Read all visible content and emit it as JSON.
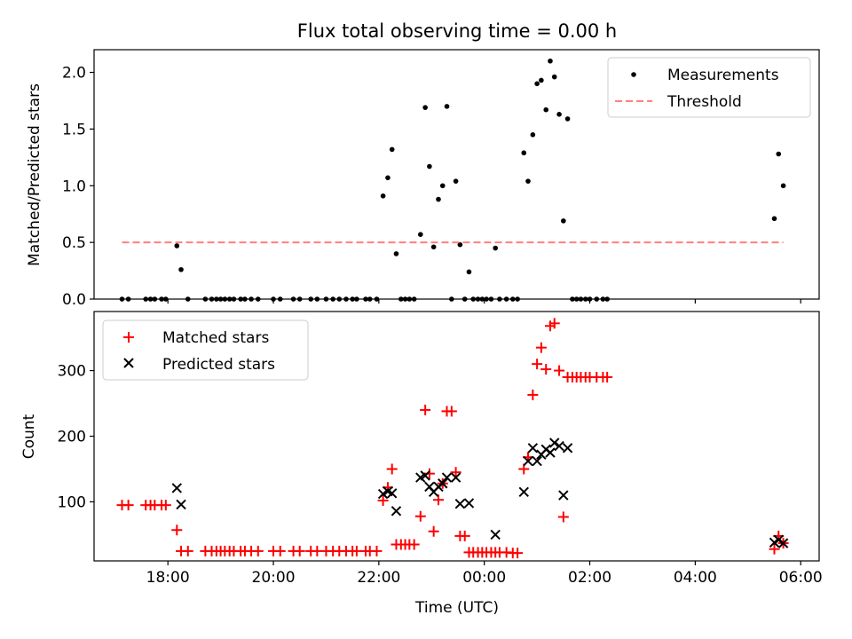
{
  "chart_data": [
    {
      "type": "scatter",
      "title": "Flux total observing time = 0.00 h",
      "xlabel": "",
      "ylabel": "Matched/Predicted stars",
      "xlim": [
        16.6,
        30.35
      ],
      "ylim": [
        0,
        2.2
      ],
      "x_unit": "hours since 00:00 UTC of first day (values above 24 are after midnight)",
      "yticks": [
        0.0,
        0.5,
        1.0,
        1.5,
        2.0
      ],
      "ytick_labels": [
        "0.0",
        "0.5",
        "1.0",
        "1.5",
        "2.0"
      ],
      "legend": "top-right",
      "series": [
        {
          "name": "Measurements",
          "marker": "dot",
          "color": "#000000",
          "points": [
            [
              17.13,
              0
            ],
            [
              17.25,
              0
            ],
            [
              17.58,
              0
            ],
            [
              17.67,
              0
            ],
            [
              17.75,
              0
            ],
            [
              17.88,
              0
            ],
            [
              17.96,
              0
            ],
            [
              18.17,
              0.47
            ],
            [
              18.25,
              0.26
            ],
            [
              18.38,
              0
            ],
            [
              18.71,
              0
            ],
            [
              18.83,
              0
            ],
            [
              18.92,
              0
            ],
            [
              19.0,
              0
            ],
            [
              19.08,
              0
            ],
            [
              19.17,
              0
            ],
            [
              19.25,
              0
            ],
            [
              19.38,
              0
            ],
            [
              19.46,
              0
            ],
            [
              19.58,
              0
            ],
            [
              19.71,
              0
            ],
            [
              20.0,
              0
            ],
            [
              20.13,
              0
            ],
            [
              20.38,
              0
            ],
            [
              20.5,
              0
            ],
            [
              20.71,
              0
            ],
            [
              20.83,
              0
            ],
            [
              21.0,
              0
            ],
            [
              21.13,
              0
            ],
            [
              21.25,
              0
            ],
            [
              21.38,
              0
            ],
            [
              21.5,
              0
            ],
            [
              21.58,
              0
            ],
            [
              21.75,
              0
            ],
            [
              21.83,
              0
            ],
            [
              21.96,
              0
            ],
            [
              22.08,
              0.91
            ],
            [
              22.17,
              1.07
            ],
            [
              22.25,
              1.32
            ],
            [
              22.33,
              0.4
            ],
            [
              22.42,
              0
            ],
            [
              22.5,
              0
            ],
            [
              22.58,
              0
            ],
            [
              22.67,
              0
            ],
            [
              22.79,
              0.57
            ],
            [
              22.88,
              1.69
            ],
            [
              22.96,
              1.17
            ],
            [
              23.04,
              0.46
            ],
            [
              23.13,
              0.88
            ],
            [
              23.21,
              1.0
            ],
            [
              23.29,
              1.7
            ],
            [
              23.38,
              0
            ],
            [
              23.46,
              1.04
            ],
            [
              23.54,
              0.48
            ],
            [
              23.63,
              0
            ],
            [
              23.71,
              0.24
            ],
            [
              23.79,
              0
            ],
            [
              23.88,
              0
            ],
            [
              23.96,
              0
            ],
            [
              24.04,
              0
            ],
            [
              24.13,
              0
            ],
            [
              24.21,
              0.45
            ],
            [
              24.29,
              0
            ],
            [
              24.42,
              0
            ],
            [
              24.54,
              0
            ],
            [
              24.63,
              0
            ],
            [
              24.75,
              1.29
            ],
            [
              24.83,
              1.04
            ],
            [
              24.92,
              1.45
            ],
            [
              25.0,
              1.9
            ],
            [
              25.08,
              1.93
            ],
            [
              25.17,
              1.67
            ],
            [
              25.25,
              2.1
            ],
            [
              25.33,
              1.96
            ],
            [
              25.42,
              1.63
            ],
            [
              25.5,
              0.69
            ],
            [
              25.58,
              1.59
            ],
            [
              25.67,
              0
            ],
            [
              25.75,
              0
            ],
            [
              25.83,
              0
            ],
            [
              25.92,
              0
            ],
            [
              26.0,
              0
            ],
            [
              26.13,
              0
            ],
            [
              26.25,
              0
            ],
            [
              26.33,
              0
            ],
            [
              29.5,
              0.71
            ],
            [
              29.58,
              1.28
            ],
            [
              29.67,
              1.0
            ]
          ]
        },
        {
          "name": "Threshold",
          "marker": "dashed-line",
          "color": "#ff7f7f",
          "points": [
            [
              17.13,
              0.5
            ],
            [
              29.67,
              0.5
            ]
          ]
        }
      ]
    },
    {
      "type": "scatter",
      "title": "",
      "xlabel": "Time (UTC)",
      "ylabel": "Count",
      "xlim": [
        16.6,
        30.35
      ],
      "ylim": [
        10,
        390
      ],
      "x_unit": "hours since 00:00 UTC of first day (values above 24 are after midnight)",
      "xticks": [
        18,
        20,
        22,
        24,
        26,
        28,
        30
      ],
      "xtick_labels": [
        "18:00",
        "20:00",
        "22:00",
        "00:00",
        "02:00",
        "04:00",
        "06:00"
      ],
      "yticks": [
        100,
        200,
        300
      ],
      "ytick_labels": [
        "100",
        "200",
        "300"
      ],
      "legend": "top-left",
      "series": [
        {
          "name": "Matched stars",
          "marker": "plus",
          "color": "#ff0000",
          "points": [
            [
              17.13,
              95
            ],
            [
              17.25,
              95
            ],
            [
              17.58,
              95
            ],
            [
              17.67,
              95
            ],
            [
              17.75,
              95
            ],
            [
              17.88,
              95
            ],
            [
              17.96,
              95
            ],
            [
              18.17,
              57
            ],
            [
              18.25,
              25
            ],
            [
              18.38,
              25
            ],
            [
              18.71,
              25
            ],
            [
              18.83,
              25
            ],
            [
              18.92,
              25
            ],
            [
              19.0,
              25
            ],
            [
              19.08,
              25
            ],
            [
              19.17,
              25
            ],
            [
              19.25,
              25
            ],
            [
              19.38,
              25
            ],
            [
              19.46,
              25
            ],
            [
              19.58,
              25
            ],
            [
              19.71,
              25
            ],
            [
              20.0,
              25
            ],
            [
              20.13,
              25
            ],
            [
              20.38,
              25
            ],
            [
              20.5,
              25
            ],
            [
              20.71,
              25
            ],
            [
              20.83,
              25
            ],
            [
              21.0,
              25
            ],
            [
              21.13,
              25
            ],
            [
              21.25,
              25
            ],
            [
              21.38,
              25
            ],
            [
              21.5,
              25
            ],
            [
              21.58,
              25
            ],
            [
              21.75,
              25
            ],
            [
              21.83,
              25
            ],
            [
              21.96,
              25
            ],
            [
              22.08,
              102
            ],
            [
              22.17,
              122
            ],
            [
              22.25,
              150
            ],
            [
              22.33,
              35
            ],
            [
              22.42,
              35
            ],
            [
              22.5,
              35
            ],
            [
              22.58,
              35
            ],
            [
              22.67,
              35
            ],
            [
              22.79,
              78
            ],
            [
              22.88,
              240
            ],
            [
              22.96,
              143
            ],
            [
              23.04,
              55
            ],
            [
              23.13,
              103
            ],
            [
              23.21,
              128
            ],
            [
              23.29,
              238
            ],
            [
              23.38,
              238
            ],
            [
              23.46,
              145
            ],
            [
              23.54,
              48
            ],
            [
              23.63,
              48
            ],
            [
              23.71,
              23
            ],
            [
              23.79,
              23
            ],
            [
              23.88,
              23
            ],
            [
              23.96,
              23
            ],
            [
              24.04,
              23
            ],
            [
              24.13,
              23
            ],
            [
              24.21,
              23
            ],
            [
              24.29,
              23
            ],
            [
              24.42,
              23
            ],
            [
              24.54,
              22
            ],
            [
              24.63,
              22
            ],
            [
              24.75,
              150
            ],
            [
              24.83,
              168
            ],
            [
              24.92,
              263
            ],
            [
              25.0,
              310
            ],
            [
              25.08,
              335
            ],
            [
              25.17,
              302
            ],
            [
              25.25,
              368
            ],
            [
              25.33,
              372
            ],
            [
              25.42,
              300
            ],
            [
              25.5,
              77
            ],
            [
              25.58,
              290
            ],
            [
              25.67,
              290
            ],
            [
              25.75,
              290
            ],
            [
              25.83,
              290
            ],
            [
              25.92,
              290
            ],
            [
              26.0,
              290
            ],
            [
              26.13,
              290
            ],
            [
              26.25,
              290
            ],
            [
              26.33,
              290
            ],
            [
              29.5,
              28
            ],
            [
              29.58,
              48
            ],
            [
              29.67,
              37
            ]
          ]
        },
        {
          "name": "Predicted stars",
          "marker": "x",
          "color": "#000000",
          "points": [
            [
              18.17,
              121
            ],
            [
              18.25,
              96
            ],
            [
              22.08,
              112
            ],
            [
              22.17,
              116
            ],
            [
              22.25,
              113
            ],
            [
              22.33,
              86
            ],
            [
              22.79,
              137
            ],
            [
              22.88,
              140
            ],
            [
              22.96,
              123
            ],
            [
              23.04,
              115
            ],
            [
              23.13,
              123
            ],
            [
              23.21,
              128
            ],
            [
              23.29,
              137
            ],
            [
              23.46,
              137
            ],
            [
              23.54,
              97
            ],
            [
              23.71,
              98
            ],
            [
              24.21,
              50
            ],
            [
              24.75,
              115
            ],
            [
              24.83,
              162
            ],
            [
              24.92,
              182
            ],
            [
              25.0,
              162
            ],
            [
              25.08,
              172
            ],
            [
              25.17,
              180
            ],
            [
              25.25,
              175
            ],
            [
              25.33,
              190
            ],
            [
              25.42,
              185
            ],
            [
              25.5,
              110
            ],
            [
              25.58,
              182
            ],
            [
              29.5,
              38
            ],
            [
              29.58,
              42
            ],
            [
              29.67,
              37
            ]
          ]
        }
      ]
    }
  ]
}
